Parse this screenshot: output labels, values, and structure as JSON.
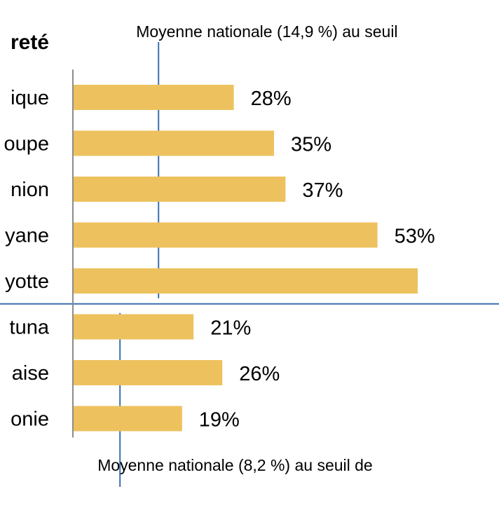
{
  "chart_data": {
    "type": "bar",
    "orientation": "horizontal",
    "title": "reté",
    "colors": {
      "bar": "#EDC25E",
      "reference": "#3A6FB0",
      "axis": "#8C8C8C"
    },
    "xlim": [
      0,
      60
    ],
    "groups": [
      {
        "categories": [
          "ique",
          "oupe",
          "nion",
          "yane",
          "yotte"
        ],
        "values": [
          28,
          35,
          37,
          53,
          60
        ],
        "value_labels": [
          "28%",
          "35%",
          "37%",
          "53%",
          ""
        ],
        "reference": {
          "value": 14.9,
          "label": "Moyenne nationale (14,9 %) au seuil"
        }
      },
      {
        "categories": [
          "tuna",
          "aise",
          "onie"
        ],
        "values": [
          21,
          26,
          19
        ],
        "value_labels": [
          "21%",
          "26%",
          "19%"
        ],
        "reference": {
          "value": 8.2,
          "label": "Moyenne nationale (8,2 %) au seuil de"
        }
      }
    ],
    "grid": false,
    "legend": "none"
  }
}
